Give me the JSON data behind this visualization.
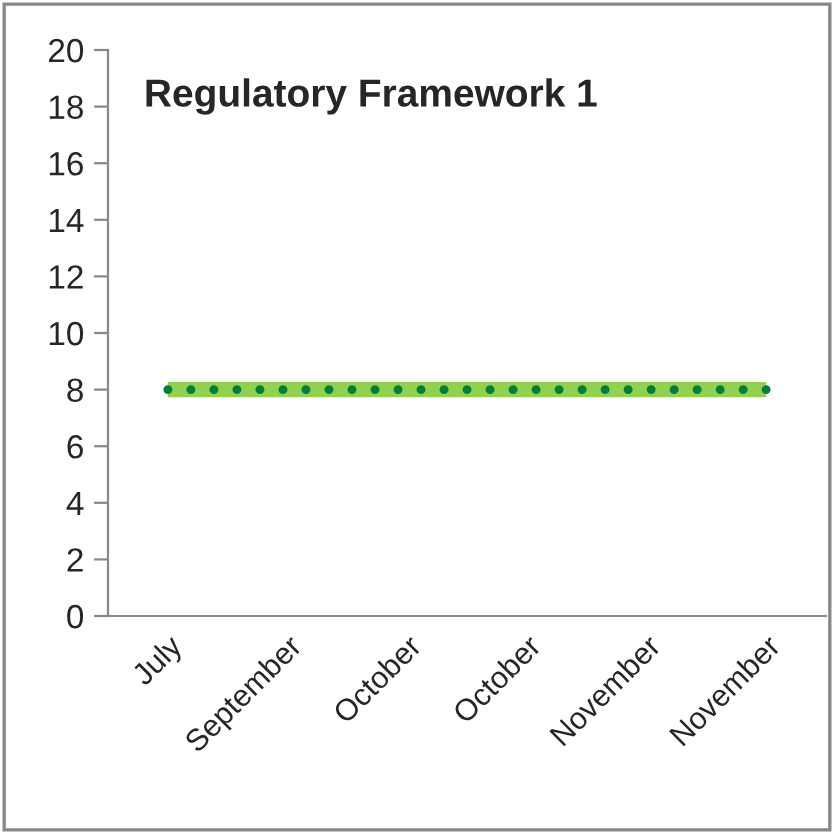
{
  "chart_data": {
    "type": "line",
    "title": "Regulatory Framework 1",
    "categories": [
      "July",
      "September",
      "October",
      "October",
      "November",
      "November"
    ],
    "series": [
      {
        "color": "#92d050",
        "line_style": "solid",
        "values": [
          8,
          8,
          8,
          8,
          8,
          8
        ]
      },
      {
        "color": "#00803c",
        "line_style": "dotted",
        "values": [
          8,
          8,
          8,
          8,
          8,
          8
        ]
      }
    ],
    "ylim": [
      0,
      20
    ],
    "yticks": [
      0,
      2,
      4,
      6,
      8,
      10,
      12,
      14,
      16,
      18,
      20
    ],
    "grid": false
  }
}
